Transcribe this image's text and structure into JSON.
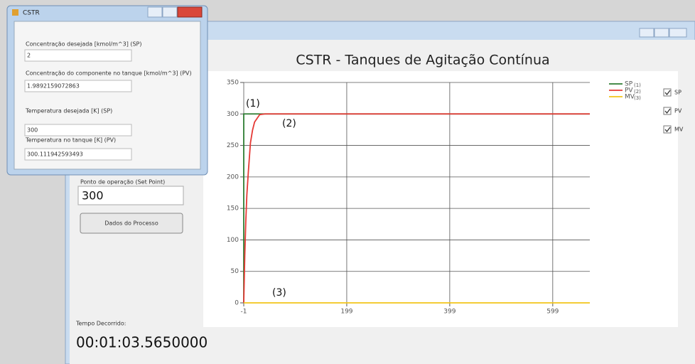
{
  "popup": {
    "title": "CSTR",
    "fields": [
      {
        "label": "Concentração desejada [kmol/m^3] (SP)",
        "value": "2"
      },
      {
        "label": "Concentração do componente no tanque [kmol/m^3] (PV)",
        "value": "1.9892159072863"
      },
      {
        "label": "Temperatura desejada [K] (SP)",
        "value": "300"
      },
      {
        "label": "Temperatura no tanque [K] (PV)",
        "value": "300.111942593493"
      }
    ]
  },
  "main": {
    "setpoint_label": "Ponto de operação (Set Point)",
    "setpoint_value": "300",
    "button": "Dados do Processo",
    "elapsed_label": "Tempo Decorrido:",
    "elapsed_value": "00:01:03.5650000",
    "checkboxes": [
      "SP",
      "PV",
      "MV"
    ]
  },
  "chart_data": {
    "type": "line",
    "title": "CSTR - Tanques de Agitação Contínua",
    "xlim": [
      -1,
      671
    ],
    "ylim": [
      0,
      350
    ],
    "xticks": [
      -1,
      199,
      399,
      599
    ],
    "yticks": [
      0,
      50,
      100,
      150,
      200,
      250,
      300,
      350
    ],
    "grid": true,
    "series": [
      {
        "name": "SP",
        "note": "(1)",
        "color": "#2e7d32",
        "x": [
          -1,
          -1,
          671
        ],
        "values": [
          0,
          300,
          300
        ]
      },
      {
        "name": "PV",
        "note": "(2)",
        "color": "#e53935",
        "x": [
          -1,
          1,
          3,
          5,
          8,
          12,
          16,
          20,
          30,
          40,
          671
        ],
        "values": [
          0,
          75,
          130,
          171,
          209,
          254,
          274,
          287,
          299,
          300,
          300
        ]
      },
      {
        "name": "MV",
        "note": "(3)",
        "color": "#f2c41a",
        "x": [
          -1,
          671
        ],
        "values": [
          0,
          0
        ]
      }
    ],
    "annotations": [
      "(1)",
      "(2)",
      "(3)"
    ]
  }
}
